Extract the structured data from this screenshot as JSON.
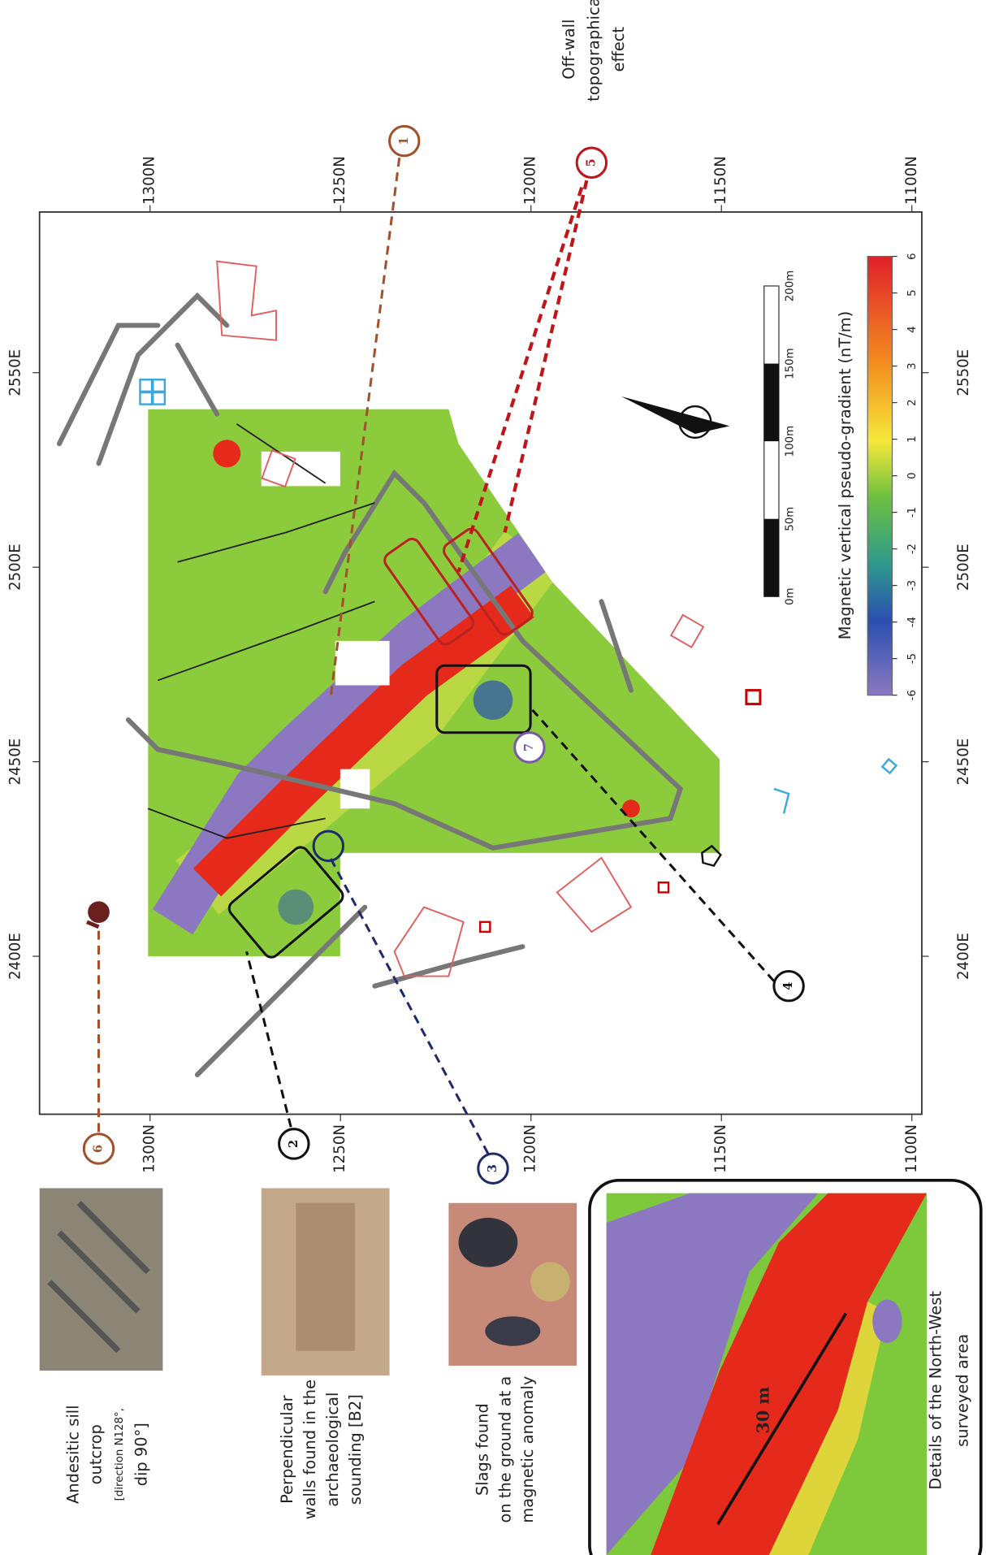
{
  "map": {
    "n_axis": {
      "lim": [
        1329,
        1097.4
      ],
      "ticks": [
        {
          "value": 1300,
          "label": "1300N"
        },
        {
          "value": 1250,
          "label": "1250N"
        },
        {
          "value": 1200,
          "label": "1200N"
        },
        {
          "value": 1150,
          "label": "1150N"
        },
        {
          "value": 1100,
          "label": "1100N"
        }
      ]
    },
    "e_axis": {
      "lim": [
        2591.3,
        2359.4
      ],
      "ticks": [
        {
          "value": 2550,
          "label": "2550E"
        },
        {
          "value": 2500,
          "label": "2500E"
        },
        {
          "value": 2450,
          "label": "2450E"
        },
        {
          "value": 2400,
          "label": "2400E"
        }
      ]
    },
    "colorbar": {
      "title": "Magnetic vertical pseudo-gradient (nT/m)",
      "lim": [
        6,
        -6
      ],
      "ticks": [
        6,
        5,
        4,
        3,
        2,
        1,
        0,
        -1,
        -2,
        -3,
        -4,
        -5,
        -6
      ]
    },
    "scale_bar": {
      "labels": [
        "0m",
        "50m",
        "100m",
        "150m",
        "200m"
      ]
    },
    "annotation": [
      "Off-wall",
      "topographica",
      "effect"
    ],
    "callouts": [
      "1",
      "2",
      "3",
      "4",
      "5",
      "6",
      "7"
    ],
    "panels": [
      {
        "lines": [
          "Andesitic sill",
          "outcrop",
          "[direction N128°,",
          "dip 90°]"
        ]
      },
      {
        "lines": [
          "Perpendicular",
          "walls found in the",
          "archaeological",
          "sounding [B2]"
        ]
      },
      {
        "lines": [
          "Slags found",
          "on the ground at a",
          "magnetic anomaly"
        ]
      }
    ],
    "inset": {
      "label": "30 m",
      "caption": [
        "Details of the North-West",
        "surveyed area"
      ]
    }
  }
}
